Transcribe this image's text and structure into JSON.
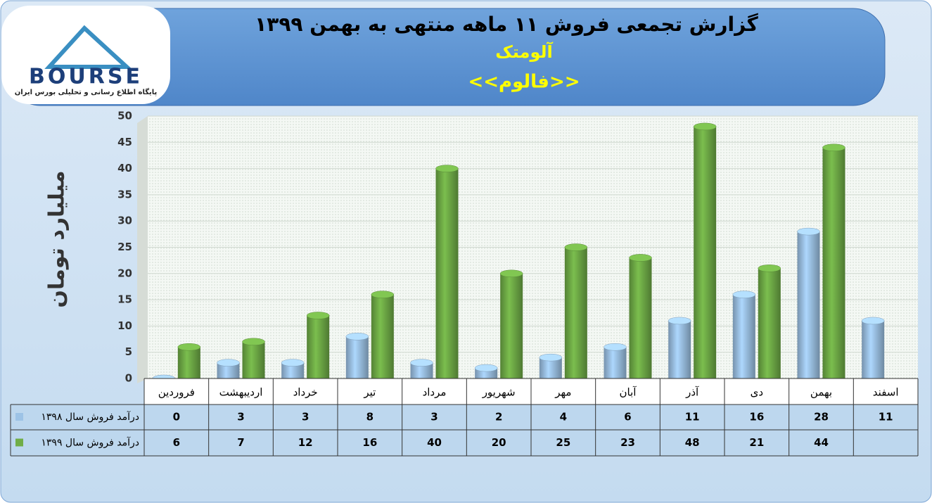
{
  "chart_data": {
    "type": "bar",
    "title": "گزارش تجمعی فروش ۱۱ ماهه منتهی به بهمن ۱۳۹۹",
    "subtitle": "آلومتک",
    "annotation": "<<فالوم>>",
    "logo_text": "BOURSE",
    "logo_caption": "پایگاه اطلاع رسانی و تحلیلی بورس ایران",
    "y_label": "میلیارد تومان",
    "categories": [
      "فروردین",
      "اردیبهشت",
      "خرداد",
      "تیر",
      "مرداد",
      "شهریور",
      "مهر",
      "آبان",
      "آذر",
      "دی",
      "بهمن",
      "اسفند"
    ],
    "series": [
      {
        "name": "درآمد فروش سال ۱۳۹۸",
        "color": "#9dc3e6",
        "values": [
          0,
          3,
          3,
          8,
          3,
          2,
          4,
          6,
          11,
          16,
          28,
          11
        ]
      },
      {
        "name": "درآمد فروش سال ۱۳۹۹",
        "color": "#70ad47",
        "values": [
          6,
          7,
          12,
          16,
          40,
          20,
          25,
          23,
          48,
          21,
          44,
          null
        ]
      }
    ],
    "ylim": [
      0,
      50
    ],
    "yticks": [
      0,
      5,
      10,
      15,
      20,
      25,
      30,
      35,
      40,
      45,
      50
    ],
    "grid": true
  }
}
